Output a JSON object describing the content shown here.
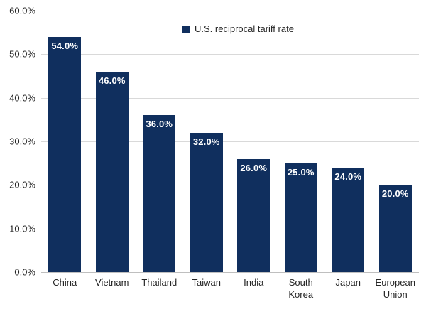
{
  "chart_data": {
    "type": "bar",
    "title": "",
    "series_name": "U.S. reciprocal tariff rate",
    "categories": [
      "China",
      "Vietnam",
      "Thailand",
      "Taiwan",
      "India",
      "South Korea",
      "Japan",
      "European Union"
    ],
    "values": [
      54.0,
      46.0,
      36.0,
      32.0,
      26.0,
      25.0,
      24.0,
      20.0
    ],
    "data_labels": [
      "54.0%",
      "46.0%",
      "36.0%",
      "32.0%",
      "26.0%",
      "25.0%",
      "24.0%",
      "20.0%"
    ],
    "ylabel": "",
    "xlabel": "",
    "ylim": [
      0,
      60
    ],
    "ytick_values": [
      0,
      10,
      20,
      30,
      40,
      50,
      60
    ],
    "ytick_labels": [
      "0.0%",
      "10.0%",
      "20.0%",
      "30.0%",
      "40.0%",
      "50.0%",
      "60.0%"
    ],
    "grid": true,
    "legend_position": "top-center-inside",
    "colors": {
      "bar": "#102f5e",
      "data_label": "#ffffff",
      "gridline": "#d9d9d9",
      "axis_line": "#bfbfbf",
      "tick_label": "#262626",
      "background": "#ffffff"
    }
  }
}
